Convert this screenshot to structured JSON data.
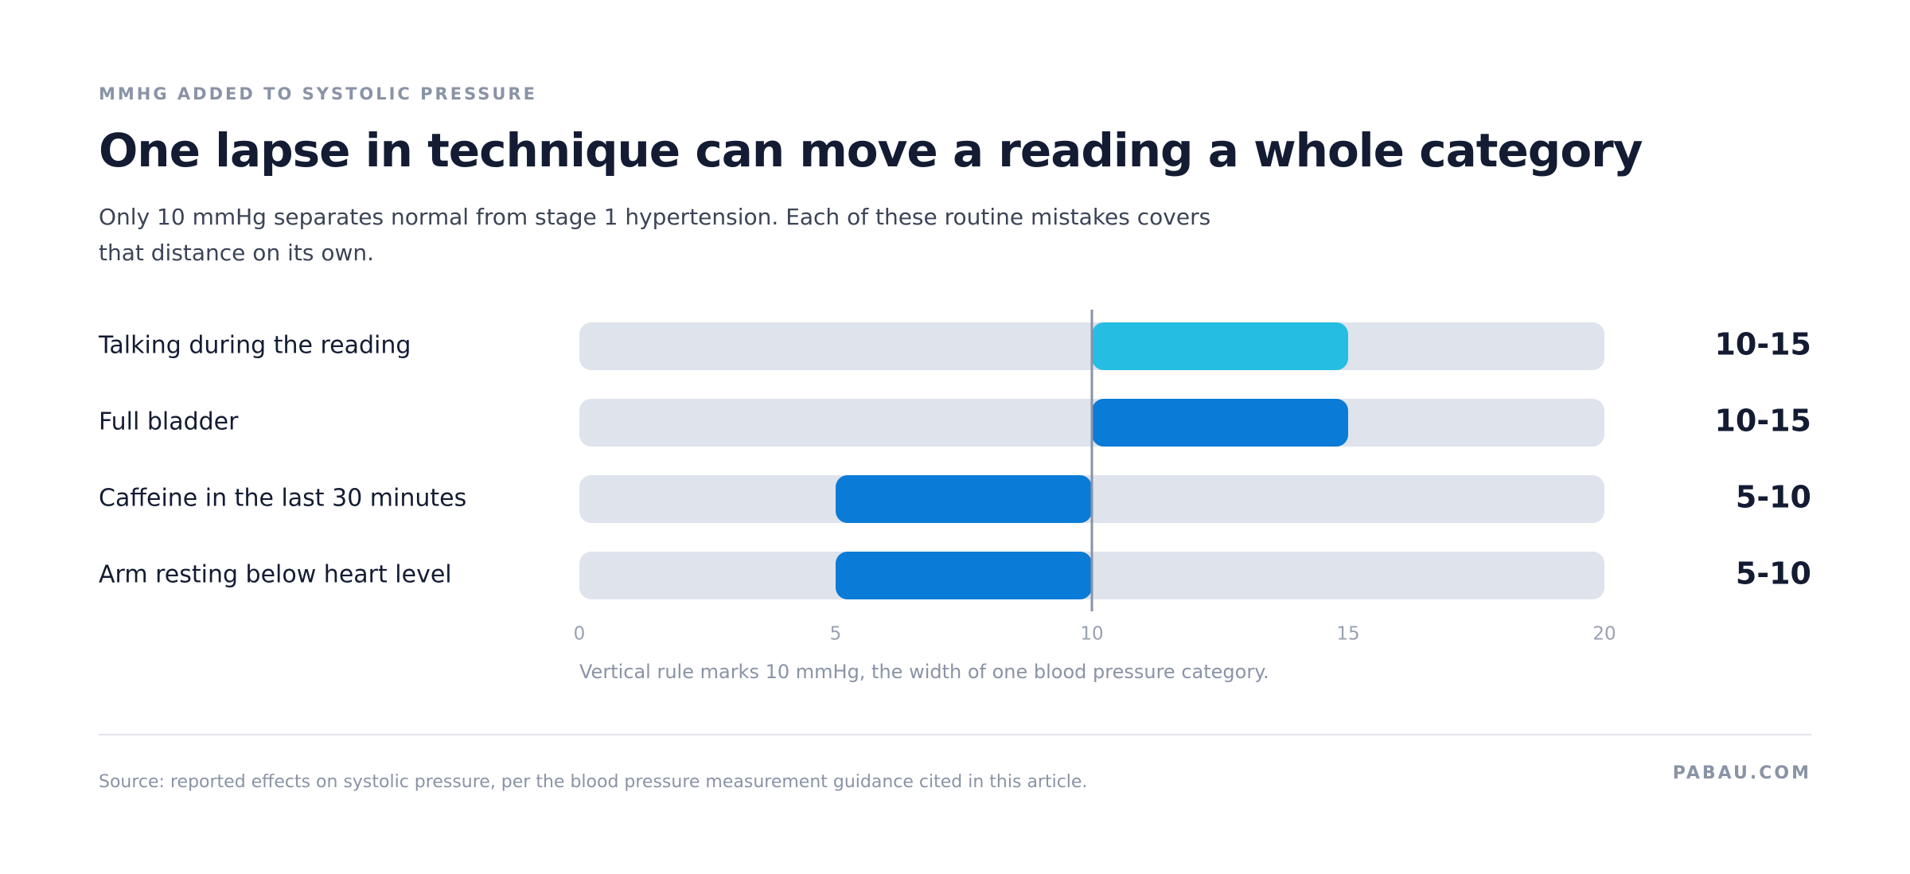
{
  "chart_data": {
    "type": "range_bar",
    "kicker": "MMHG ADDED TO SYSTOLIC PRESSURE",
    "title": "One lapse in technique can move a reading a whole category",
    "subtitle": "Only 10 mmHg separates normal from stage 1 hypertension. Each of these routine mistakes covers that distance on its own.",
    "categories": [
      "Talking during the reading",
      "Full bladder",
      "Caffeine in the last 30 minutes",
      "Arm resting below heart level"
    ],
    "low": [
      10,
      10,
      5,
      5
    ],
    "high": [
      15,
      15,
      10,
      10
    ],
    "value_labels": [
      "10-15",
      "10-15",
      "5-10",
      "5-10"
    ],
    "colors": [
      "#26bde2",
      "#0a7bd6",
      "#0a7bd6",
      "#0a7bd6"
    ],
    "xlim": [
      0,
      20
    ],
    "xticks": [
      0,
      5,
      10,
      15,
      20
    ],
    "reference_line": {
      "value": 10,
      "label": "Vertical rule marks 10 mmHg, the width of one blood pressure category."
    },
    "source": "Source: reported effects on systolic pressure, per the blood pressure measurement guidance cited in this article.",
    "brand": "PABAU.COM"
  }
}
